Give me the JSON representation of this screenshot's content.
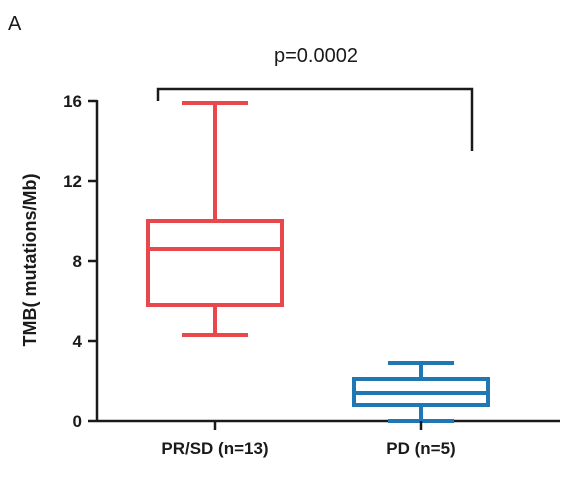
{
  "panel_label": "A",
  "chart_data": {
    "type": "box",
    "ylabel": "TMB( mutations/Mb)",
    "xlabel": "",
    "ylim": [
      0,
      16
    ],
    "yticks": [
      "0",
      "4",
      "8",
      "12",
      "16"
    ],
    "grid": false,
    "categories": [
      "PR/SD (n=13)",
      "PD (n=5)"
    ],
    "boxes": [
      {
        "category": "PR/SD (n=13)",
        "min": 4.3,
        "q1": 5.8,
        "median": 8.6,
        "q3": 10.0,
        "max": 15.9,
        "color": "#e8474c"
      },
      {
        "category": "PD (n=5)",
        "min": 0.0,
        "q1": 0.8,
        "median": 1.4,
        "q3": 2.1,
        "max": 2.9,
        "color": "#1f77b4"
      }
    ],
    "annotation": {
      "text": "p=0.0002",
      "bracket": {
        "left_y": 16.0,
        "right_y": 13.5,
        "top_y": 16.6
      }
    }
  }
}
